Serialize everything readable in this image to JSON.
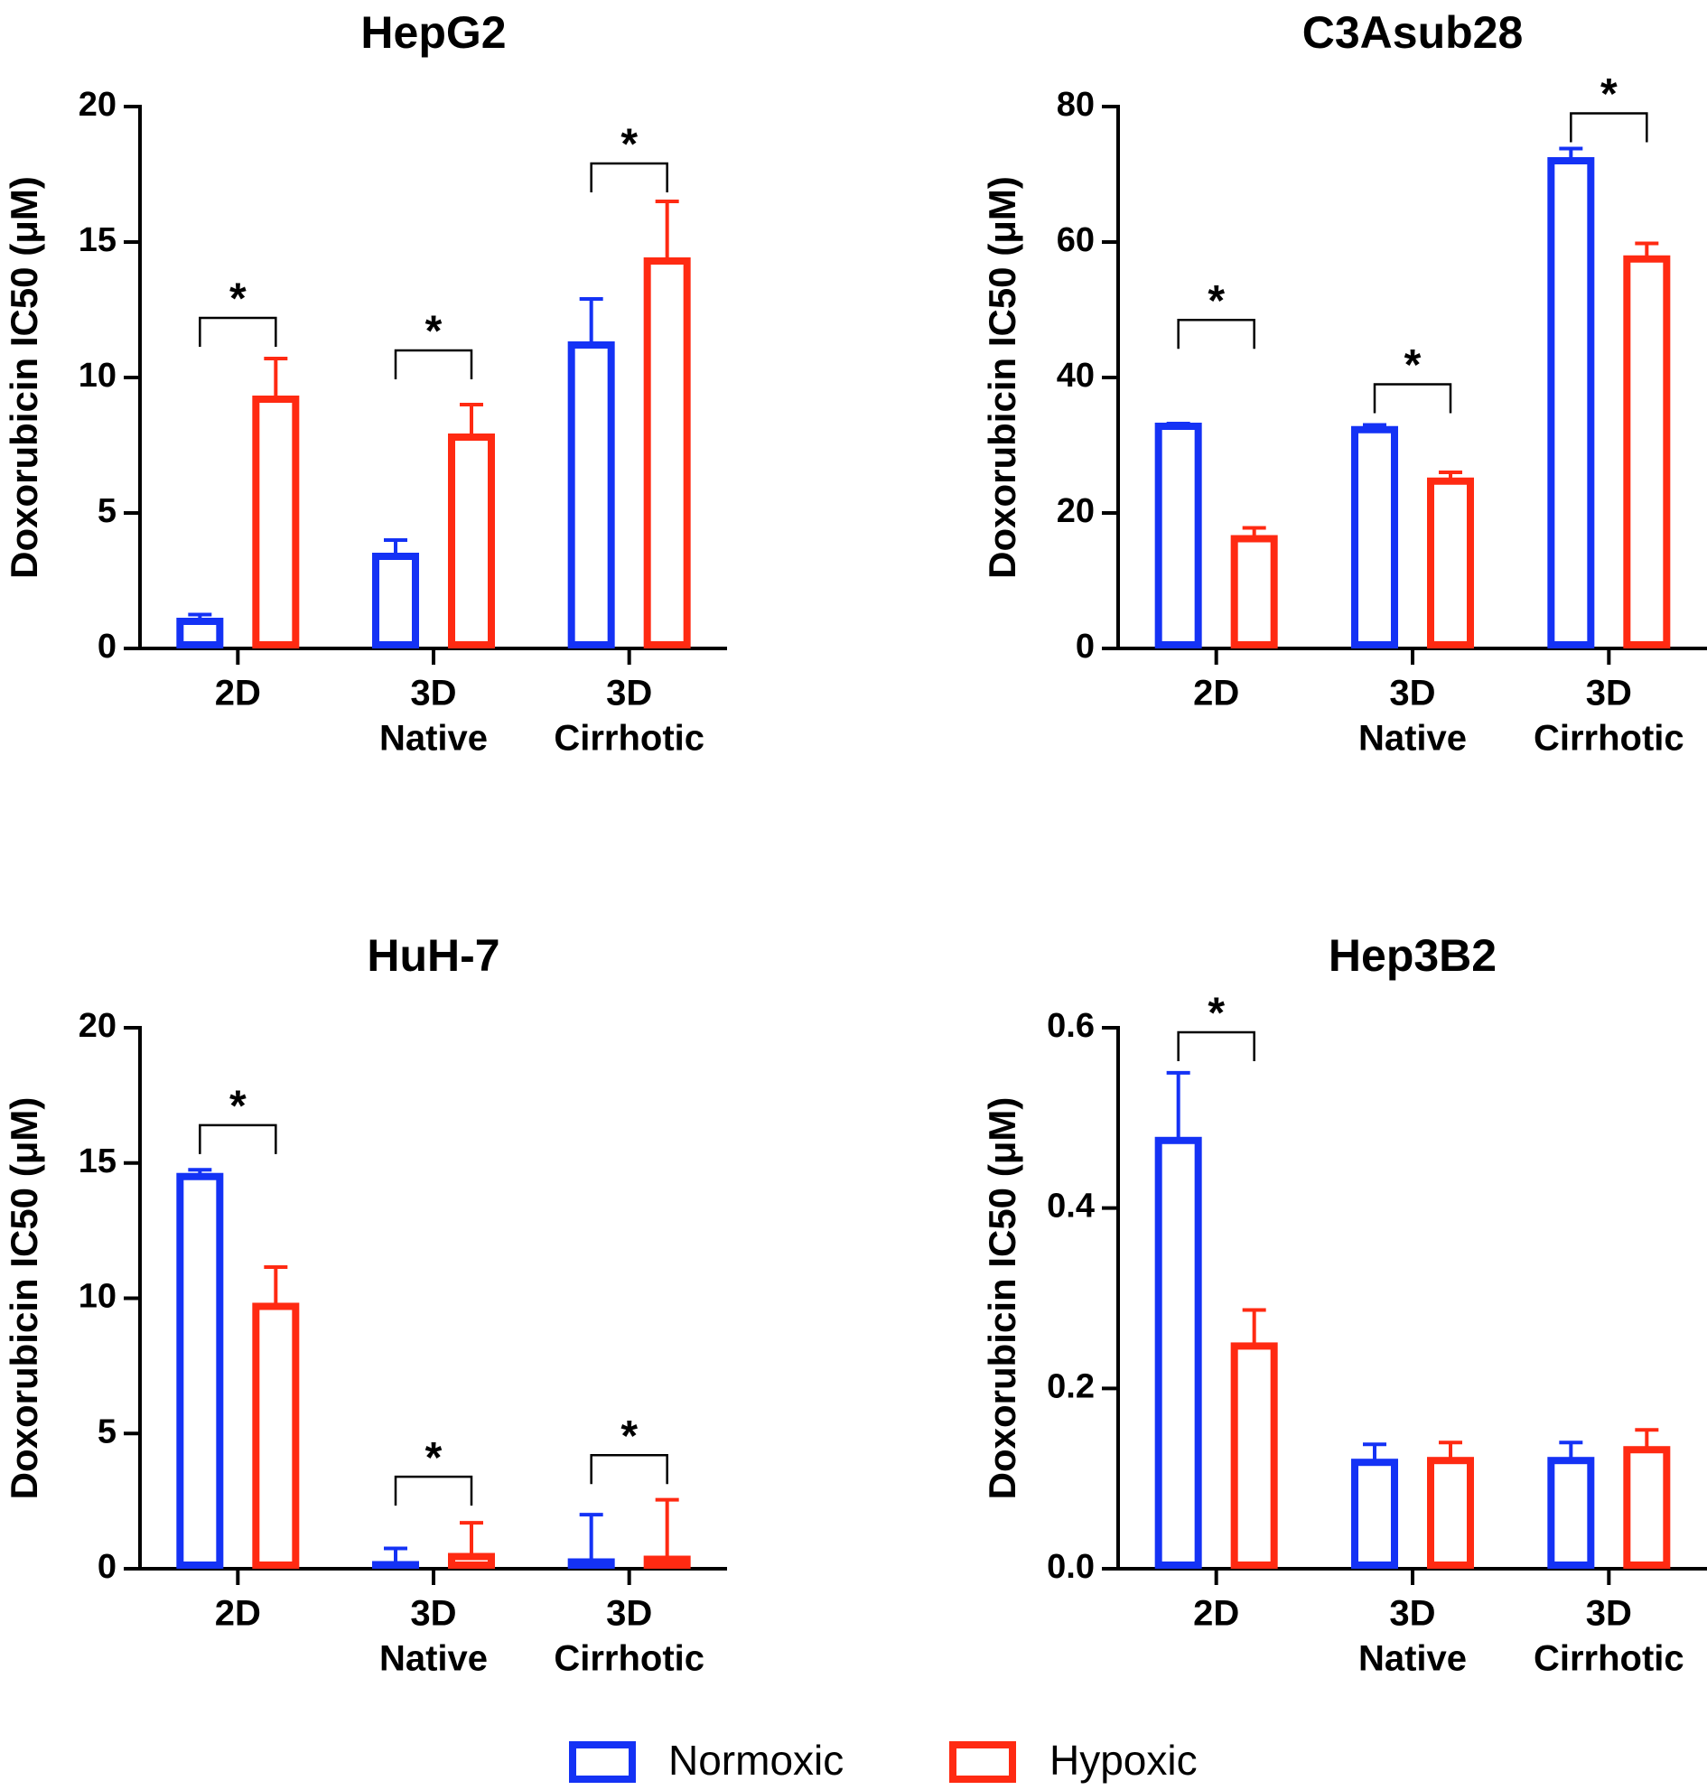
{
  "colors": {
    "normoxic": "#1432f5",
    "hypoxic": "#ff2a12",
    "axis": "#000000"
  },
  "legend": [
    {
      "key": "normoxic",
      "label": "Normoxic"
    },
    {
      "key": "hypoxic",
      "label": "Hypoxic"
    }
  ],
  "chart_data": [
    {
      "type": "bar",
      "title": "HepG2",
      "ylabel": "Doxorubicin IC50 (μM)",
      "xlabel": "",
      "ylim": [
        0,
        20
      ],
      "yticks": [
        "0",
        "5",
        "10",
        "15",
        "20"
      ],
      "categories": [
        [
          "2D"
        ],
        [
          "3D",
          "Native"
        ],
        [
          "3D",
          "Cirrhotic"
        ]
      ],
      "series": [
        {
          "name": "Normoxic",
          "key": "normoxic",
          "values": [
            1.0,
            3.4,
            11.2
          ],
          "errors": [
            0.25,
            0.6,
            1.7
          ]
        },
        {
          "name": "Hypoxic",
          "key": "hypoxic",
          "values": [
            9.2,
            7.8,
            14.3
          ],
          "errors": [
            1.5,
            1.2,
            2.2
          ]
        }
      ],
      "significance": [
        {
          "category": 0,
          "label": "*",
          "bracket_value": 12.2
        },
        {
          "category": 1,
          "label": "*",
          "bracket_value": 11.0
        },
        {
          "category": 2,
          "label": "*",
          "bracket_value": 17.9
        }
      ]
    },
    {
      "type": "bar",
      "title": "C3Asub28",
      "ylabel": "Doxorubicin IC50 (μM)",
      "xlabel": "",
      "ylim": [
        0,
        80
      ],
      "yticks": [
        "0",
        "20",
        "40",
        "60",
        "80"
      ],
      "categories": [
        [
          "2D"
        ],
        [
          "3D",
          "Native"
        ],
        [
          "3D",
          "Cirrhotic"
        ]
      ],
      "series": [
        {
          "name": "Normoxic",
          "key": "normoxic",
          "values": [
            32.8,
            32.3,
            72.0
          ],
          "errors": [
            0.4,
            0.7,
            1.8
          ]
        },
        {
          "name": "Hypoxic",
          "key": "hypoxic",
          "values": [
            16.2,
            24.7,
            57.5
          ],
          "errors": [
            1.6,
            1.3,
            2.3
          ]
        }
      ],
      "significance": [
        {
          "category": 0,
          "label": "*",
          "bracket_value": 48.5
        },
        {
          "category": 1,
          "label": "*",
          "bracket_value": 39.0
        },
        {
          "category": 2,
          "label": "*",
          "bracket_value": 79.0
        }
      ]
    },
    {
      "type": "bar",
      "title": "HuH-7",
      "ylabel": "Doxorubicin IC50 (μM)",
      "xlabel": "",
      "ylim": [
        0,
        20
      ],
      "yticks": [
        "0",
        "5",
        "10",
        "15",
        "20"
      ],
      "categories": [
        [
          "2D"
        ],
        [
          "3D",
          "Native"
        ],
        [
          "3D",
          "Cirrhotic"
        ]
      ],
      "series": [
        {
          "name": "Normoxic",
          "key": "normoxic",
          "values": [
            14.5,
            0.15,
            0.25
          ],
          "errors": [
            0.25,
            0.6,
            1.75
          ]
        },
        {
          "name": "Hypoxic",
          "key": "hypoxic",
          "values": [
            9.7,
            0.45,
            0.35
          ],
          "errors": [
            1.45,
            1.25,
            2.2
          ]
        }
      ],
      "significance": [
        {
          "category": 0,
          "label": "*",
          "bracket_value": 16.4
        },
        {
          "category": 1,
          "label": "*",
          "bracket_value": 3.4
        },
        {
          "category": 2,
          "label": "*",
          "bracket_value": 4.2
        }
      ]
    },
    {
      "type": "bar",
      "title": "Hep3B2",
      "ylabel": "Doxorubicin IC50 (μM)",
      "xlabel": "",
      "ylim": [
        0,
        0.6
      ],
      "yticks": [
        "0.0",
        "0.2",
        "0.4",
        "0.6"
      ],
      "categories": [
        [
          "2D"
        ],
        [
          "3D",
          "Native"
        ],
        [
          "3D",
          "Cirrhotic"
        ]
      ],
      "series": [
        {
          "name": "Normoxic",
          "key": "normoxic",
          "values": [
            0.475,
            0.118,
            0.12
          ],
          "errors": [
            0.075,
            0.02,
            0.02
          ]
        },
        {
          "name": "Hypoxic",
          "key": "hypoxic",
          "values": [
            0.247,
            0.12,
            0.132
          ],
          "errors": [
            0.04,
            0.02,
            0.022
          ]
        }
      ],
      "significance": [
        {
          "category": 0,
          "label": "*",
          "bracket_value": 0.595
        }
      ]
    }
  ]
}
